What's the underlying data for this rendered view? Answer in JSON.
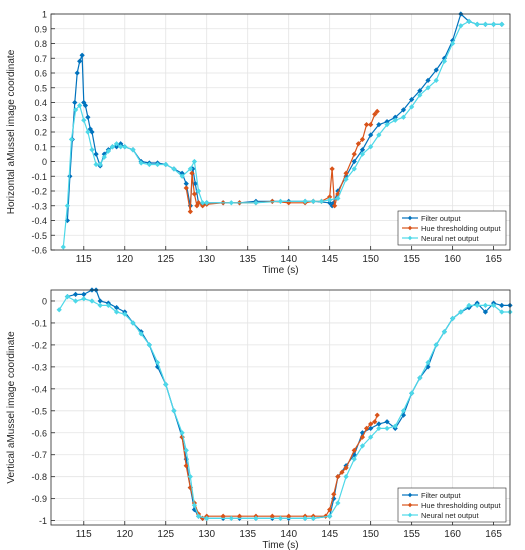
{
  "chart_data": [
    {
      "type": "line",
      "title": "",
      "xlabel": "Time (s)",
      "ylabel": "Horizontal aMussel image coordinate",
      "xlim": [
        111,
        167
      ],
      "ylim": [
        -0.6,
        1
      ],
      "xticks": [
        115,
        120,
        125,
        130,
        135,
        140,
        145,
        150,
        155,
        160,
        165
      ],
      "xtick_labels": [
        "115",
        "120",
        "125",
        "130",
        "135",
        "140",
        "145",
        "150",
        "155",
        "160",
        "165"
      ],
      "yticks": [
        -0.6,
        -0.5,
        -0.4,
        -0.3,
        -0.2,
        -0.1,
        0,
        0.1,
        0.2,
        0.3,
        0.4,
        0.5,
        0.6,
        0.7,
        0.8,
        0.9,
        1
      ],
      "ytick_labels": [
        "-0.6",
        "-0.5",
        "-0.4",
        "-0.3",
        "-0.2",
        "-0.1",
        "0",
        "0.1",
        "0.2",
        "0.3",
        "0.4",
        "0.5",
        "0.6",
        "0.7",
        "0.8",
        "0.9",
        "1"
      ],
      "grid": true,
      "legend_position": "bottom-right",
      "series": [
        {
          "name": "Filter output",
          "color": "#0072BD",
          "marker": "diamond",
          "x": [
            113.0,
            113.3,
            113.6,
            113.9,
            114.2,
            114.5,
            114.8,
            115.0,
            115.2,
            115.5,
            115.8,
            116.0,
            116.5,
            117.0,
            117.5,
            118.0,
            118.5,
            119.0,
            119.5,
            120.0,
            121.0,
            122.0,
            123.0,
            124.0,
            125.0,
            126.0,
            127.0,
            127.5,
            128.0,
            128.3,
            128.6,
            129.0,
            129.5,
            130.0,
            132.0,
            134.0,
            136.0,
            138.0,
            140.0,
            142.0,
            143.0,
            145.0,
            145.3,
            145.5,
            146.0,
            147.0,
            148.0,
            149.0,
            150.0,
            151.0,
            152.0,
            153.0,
            154.0,
            155.0,
            156.0,
            157.0,
            158.0,
            159.0,
            160.0,
            161.0,
            162.0,
            163.0,
            164.0,
            165.0,
            166.0
          ],
          "y": [
            -0.4,
            -0.1,
            0.15,
            0.4,
            0.6,
            0.68,
            0.72,
            0.4,
            0.38,
            0.3,
            0.22,
            0.2,
            0.05,
            -0.03,
            0.05,
            0.08,
            0.1,
            0.1,
            0.12,
            0.1,
            0.08,
            0.0,
            -0.01,
            -0.01,
            -0.02,
            -0.05,
            -0.08,
            -0.15,
            -0.3,
            -0.05,
            -0.15,
            -0.28,
            -0.29,
            -0.28,
            -0.28,
            -0.28,
            -0.27,
            -0.27,
            -0.27,
            -0.27,
            -0.27,
            -0.28,
            -0.3,
            -0.28,
            -0.2,
            -0.1,
            0.0,
            0.08,
            0.18,
            0.25,
            0.27,
            0.3,
            0.35,
            0.42,
            0.48,
            0.55,
            0.62,
            0.7,
            0.82,
            1.0,
            0.95,
            0.93,
            0.93,
            0.93,
            0.93
          ]
        },
        {
          "name": "Hue thresholding output",
          "color": "#D95319",
          "marker": "diamond",
          "x": [
            127.5,
            128.0,
            128.2,
            128.5,
            128.8,
            129.0,
            129.5,
            130.0,
            132.0,
            134.0,
            136.0,
            138.0,
            140.0,
            142.0,
            143.0,
            144.0,
            145.0,
            145.3,
            145.6,
            146.0,
            147.0,
            148.0,
            148.5,
            149.0,
            149.5,
            150.0,
            150.5,
            150.8
          ],
          "y": [
            -0.18,
            -0.34,
            -0.08,
            -0.22,
            -0.3,
            -0.28,
            -0.3,
            -0.29,
            -0.28,
            -0.28,
            -0.28,
            -0.27,
            -0.28,
            -0.28,
            -0.27,
            -0.27,
            -0.24,
            -0.05,
            -0.3,
            -0.22,
            -0.08,
            0.05,
            0.12,
            0.15,
            0.25,
            0.25,
            0.32,
            0.34
          ]
        },
        {
          "name": "Neural net output",
          "color": "#4DD8E8",
          "marker": "diamond",
          "x": [
            112.5,
            113.0,
            113.5,
            114.0,
            114.5,
            115.0,
            115.5,
            116.0,
            116.5,
            117.0,
            117.5,
            118.0,
            118.5,
            119.0,
            119.5,
            120.0,
            121.0,
            122.0,
            123.0,
            124.0,
            125.0,
            126.0,
            127.0,
            128.0,
            128.5,
            129.0,
            129.5,
            130.0,
            133.0,
            136.0,
            139.0,
            142.0,
            143.0,
            144.0,
            145.0,
            146.0,
            147.0,
            148.0,
            149.0,
            150.0,
            151.0,
            152.0,
            153.0,
            154.0,
            155.0,
            156.0,
            157.0,
            158.0,
            159.0,
            160.0,
            161.0,
            162.0,
            163.0,
            164.0,
            165.0,
            166.0
          ],
          "y": [
            -0.58,
            -0.3,
            0.15,
            0.35,
            0.38,
            0.28,
            0.2,
            0.08,
            -0.02,
            -0.02,
            0.03,
            0.07,
            0.1,
            0.12,
            0.1,
            0.1,
            0.08,
            -0.01,
            -0.02,
            -0.02,
            -0.02,
            -0.05,
            -0.1,
            -0.05,
            0.0,
            -0.2,
            -0.28,
            -0.28,
            -0.28,
            -0.28,
            -0.27,
            -0.27,
            -0.27,
            -0.27,
            -0.26,
            -0.25,
            -0.12,
            -0.05,
            0.05,
            0.1,
            0.18,
            0.25,
            0.28,
            0.3,
            0.37,
            0.45,
            0.5,
            0.55,
            0.68,
            0.8,
            0.92,
            0.95,
            0.93,
            0.93,
            0.93,
            0.93
          ]
        }
      ]
    },
    {
      "type": "line",
      "title": "",
      "xlabel": "Time (s)",
      "ylabel": "Vertical aMussel image coordinate",
      "xlim": [
        111,
        167
      ],
      "ylim": [
        -1.02,
        0.05
      ],
      "xticks": [
        115,
        120,
        125,
        130,
        135,
        140,
        145,
        150,
        155,
        160,
        165
      ],
      "xtick_labels": [
        "115",
        "120",
        "125",
        "130",
        "135",
        "140",
        "145",
        "150",
        "155",
        "160",
        "165"
      ],
      "yticks": [
        0,
        -0.1,
        -0.2,
        -0.3,
        -0.4,
        -0.5,
        -0.6,
        -0.7,
        -0.8,
        -0.9,
        -1
      ],
      "ytick_labels": [
        "0",
        "-0.1",
        "-0.2",
        "-0.3",
        "-0.4",
        "-0.5",
        "-0.6",
        "-0.7",
        "-0.8",
        "-0.9",
        "-1"
      ],
      "grid": true,
      "legend_position": "bottom-right",
      "series": [
        {
          "name": "Filter output",
          "color": "#0072BD",
          "marker": "diamond",
          "x": [
            113.0,
            114.0,
            115.0,
            116.0,
            116.5,
            117.0,
            118.0,
            119.0,
            120.0,
            121.0,
            122.0,
            123.0,
            124.0,
            125.0,
            126.0,
            127.0,
            127.5,
            128.0,
            128.5,
            129.0,
            129.5,
            130.0,
            132.0,
            134.0,
            136.0,
            138.0,
            140.0,
            142.0,
            143.0,
            145.0,
            145.5,
            146.0,
            147.0,
            148.0,
            149.0,
            150.0,
            151.0,
            152.0,
            153.0,
            154.0,
            155.0,
            156.0,
            157.0,
            158.0,
            159.0,
            160.0,
            161.0,
            162.0,
            163.0,
            164.0,
            165.0,
            166.0,
            167.0
          ],
          "y": [
            0.02,
            0.03,
            0.03,
            0.05,
            0.05,
            0.0,
            -0.01,
            -0.03,
            -0.05,
            -0.1,
            -0.14,
            -0.2,
            -0.3,
            -0.38,
            -0.5,
            -0.62,
            -0.72,
            -0.85,
            -0.95,
            -0.98,
            -0.99,
            -0.99,
            -0.99,
            -0.99,
            -0.99,
            -0.99,
            -0.99,
            -0.99,
            -0.99,
            -0.98,
            -0.9,
            -0.8,
            -0.75,
            -0.7,
            -0.6,
            -0.58,
            -0.56,
            -0.55,
            -0.58,
            -0.52,
            -0.42,
            -0.35,
            -0.3,
            -0.2,
            -0.14,
            -0.08,
            -0.05,
            -0.03,
            -0.01,
            -0.05,
            -0.01,
            -0.02,
            -0.02
          ]
        },
        {
          "name": "Hue thresholding output",
          "color": "#D95319",
          "marker": "diamond",
          "x": [
            127.0,
            127.5,
            128.0,
            128.5,
            129.0,
            129.5,
            130.0,
            132.0,
            134.0,
            136.0,
            138.0,
            140.0,
            142.0,
            143.0,
            144.5,
            145.0,
            145.5,
            146.0,
            146.5,
            147.0,
            148.0,
            149.0,
            149.5,
            150.0,
            150.5,
            150.8
          ],
          "y": [
            -0.62,
            -0.75,
            -0.85,
            -0.92,
            -0.97,
            -0.99,
            -0.98,
            -0.98,
            -0.98,
            -0.98,
            -0.98,
            -0.98,
            -0.98,
            -0.98,
            -0.98,
            -0.95,
            -0.88,
            -0.8,
            -0.78,
            -0.76,
            -0.68,
            -0.62,
            -0.58,
            -0.56,
            -0.55,
            -0.52
          ]
        },
        {
          "name": "Neural net output",
          "color": "#4DD8E8",
          "marker": "diamond",
          "x": [
            112.0,
            113.0,
            114.0,
            115.0,
            116.0,
            117.0,
            118.0,
            119.0,
            120.0,
            121.0,
            122.0,
            123.0,
            124.0,
            125.0,
            126.0,
            127.0,
            127.5,
            128.0,
            128.5,
            129.0,
            130.0,
            133.0,
            136.0,
            139.0,
            142.0,
            143.0,
            145.0,
            146.0,
            147.0,
            148.0,
            149.0,
            150.0,
            151.0,
            152.0,
            153.0,
            154.0,
            155.0,
            156.0,
            157.0,
            158.0,
            159.0,
            160.0,
            161.0,
            162.0,
            163.0,
            164.0,
            165.0,
            166.0,
            167.0
          ],
          "y": [
            -0.04,
            0.02,
            0.0,
            0.01,
            0.0,
            -0.02,
            -0.02,
            -0.05,
            -0.06,
            -0.1,
            -0.15,
            -0.2,
            -0.28,
            -0.38,
            -0.5,
            -0.6,
            -0.68,
            -0.8,
            -0.93,
            -0.98,
            -0.99,
            -0.99,
            -0.99,
            -0.99,
            -0.99,
            -0.99,
            -0.98,
            -0.92,
            -0.8,
            -0.72,
            -0.66,
            -0.62,
            -0.58,
            -0.58,
            -0.57,
            -0.5,
            -0.42,
            -0.35,
            -0.28,
            -0.2,
            -0.14,
            -0.08,
            -0.05,
            -0.02,
            -0.02,
            -0.02,
            -0.02,
            -0.05,
            -0.05
          ]
        }
      ]
    }
  ]
}
